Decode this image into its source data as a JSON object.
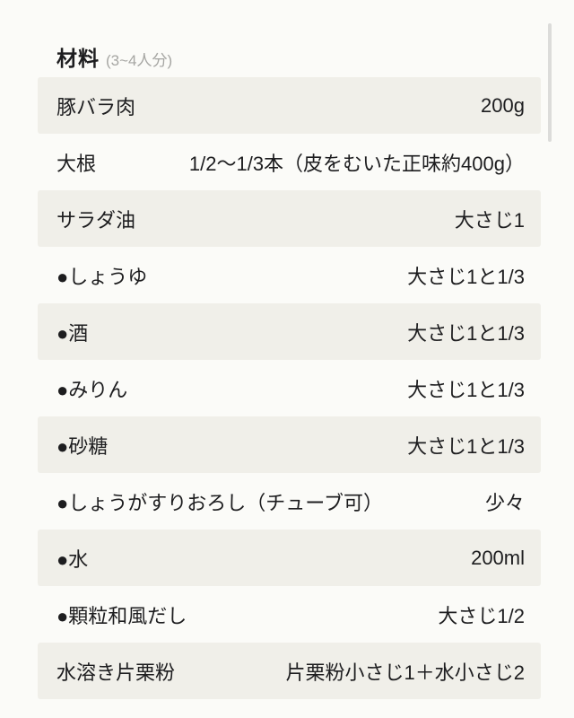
{
  "header": {
    "title": "材料",
    "servings": "(3~4人分)"
  },
  "ingredients": [
    {
      "name": "豚バラ肉",
      "amount": "200g"
    },
    {
      "name": "大根",
      "amount": "1/2～1/3本（皮をむいた正味約400g）"
    },
    {
      "name": "サラダ油",
      "amount": "大さじ1"
    },
    {
      "name": "●しょうゆ",
      "amount": "大さじ1と1/3"
    },
    {
      "name": "●酒",
      "amount": "大さじ1と1/3"
    },
    {
      "name": "●みりん",
      "amount": "大さじ1と1/3"
    },
    {
      "name": "●砂糖",
      "amount": "大さじ1と1/3"
    },
    {
      "name": "●しょうがすりおろし（チューブ可）",
      "amount": "少々"
    },
    {
      "name": "●水",
      "amount": "200ml"
    },
    {
      "name": "●顆粒和風だし",
      "amount": "大さじ1/2"
    },
    {
      "name": "水溶き片栗粉",
      "amount": "片栗粉小さじ1＋水小さじ2"
    }
  ],
  "colors": {
    "page_bg": "#fbfbf8",
    "row_alt_bg": "#f0efe9",
    "text": "#1d1d1f",
    "servings_muted": "#a6a6a3",
    "scrollbar": "#dcdcda"
  }
}
